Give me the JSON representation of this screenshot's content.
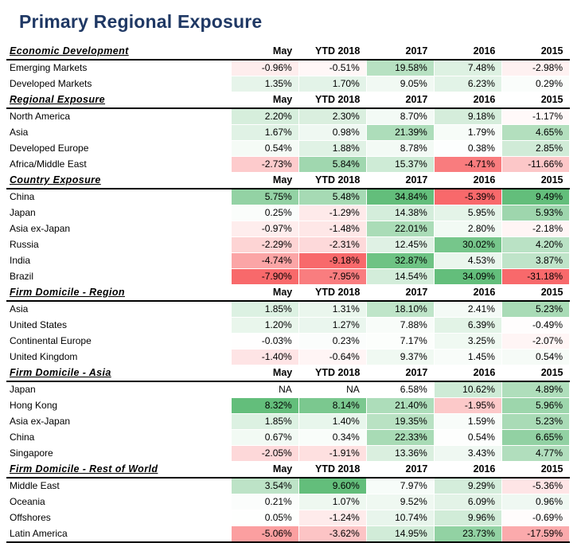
{
  "title": "Primary Regional Exposure",
  "chart_data": {
    "type": "table",
    "subtype": "heatmap",
    "columns": [
      "May",
      "YTD 2018",
      "2017",
      "2016",
      "2015"
    ],
    "heatmap_colors": {
      "negative": "#F8696B",
      "neutral": "#FFFFFF",
      "positive": "#63BE7B"
    },
    "color_scale": "per-column, white at zero (or column min if all positive), green at column max, red at column min",
    "sections": [
      {
        "name": "Economic Development",
        "rows": [
          {
            "label": "Emerging Markets",
            "values": [
              "-0.96%",
              "-0.51%",
              "19.58%",
              "7.48%",
              "-2.98%"
            ]
          },
          {
            "label": "Developed Markets",
            "values": [
              "1.35%",
              "1.70%",
              "9.05%",
              "6.23%",
              "0.29%"
            ]
          }
        ]
      },
      {
        "name": "Regional Exposure",
        "rows": [
          {
            "label": "North America",
            "values": [
              "2.20%",
              "2.30%",
              "8.70%",
              "9.18%",
              "-1.17%"
            ]
          },
          {
            "label": "Asia",
            "values": [
              "1.67%",
              "0.98%",
              "21.39%",
              "1.79%",
              "4.65%"
            ]
          },
          {
            "label": "Developed Europe",
            "values": [
              "0.54%",
              "1.88%",
              "8.78%",
              "0.38%",
              "2.85%"
            ]
          },
          {
            "label": "Africa/Middle East",
            "values": [
              "-2.73%",
              "5.84%",
              "15.37%",
              "-4.71%",
              "-11.66%"
            ]
          }
        ]
      },
      {
        "name": "Country Exposure",
        "rows": [
          {
            "label": "China",
            "values": [
              "5.75%",
              "5.48%",
              "34.84%",
              "-5.39%",
              "9.49%"
            ]
          },
          {
            "label": "Japan",
            "values": [
              "0.25%",
              "-1.29%",
              "14.38%",
              "5.95%",
              "5.93%"
            ]
          },
          {
            "label": "Asia ex-Japan",
            "values": [
              "-0.97%",
              "-1.48%",
              "22.01%",
              "2.80%",
              "-2.18%"
            ]
          },
          {
            "label": "Russia",
            "values": [
              "-2.29%",
              "-2.31%",
              "12.45%",
              "30.02%",
              "4.20%"
            ]
          },
          {
            "label": "India",
            "values": [
              "-4.74%",
              "-9.18%",
              "32.87%",
              "4.53%",
              "3.87%"
            ]
          },
          {
            "label": "Brazil",
            "values": [
              "-7.90%",
              "-7.95%",
              "14.54%",
              "34.09%",
              "-31.18%"
            ]
          }
        ]
      },
      {
        "name": "Firm Domicile - Region",
        "rows": [
          {
            "label": "Asia",
            "values": [
              "1.85%",
              "1.31%",
              "18.10%",
              "2.41%",
              "5.23%"
            ]
          },
          {
            "label": "United States",
            "values": [
              "1.20%",
              "1.27%",
              "7.88%",
              "6.39%",
              "-0.49%"
            ]
          },
          {
            "label": "Continental Europe",
            "values": [
              "-0.03%",
              "0.23%",
              "7.17%",
              "3.25%",
              "-2.07%"
            ]
          },
          {
            "label": "United Kingdom",
            "values": [
              "-1.40%",
              "-0.64%",
              "9.37%",
              "1.45%",
              "0.54%"
            ]
          }
        ]
      },
      {
        "name": "Firm Domicile - Asia",
        "rows": [
          {
            "label": "Japan",
            "values": [
              "NA",
              "NA",
              "6.58%",
              "10.62%",
              "4.89%"
            ]
          },
          {
            "label": "Hong Kong",
            "values": [
              "8.32%",
              "8.14%",
              "21.40%",
              "-1.95%",
              "5.96%"
            ]
          },
          {
            "label": "Asia ex-Japan",
            "values": [
              "1.85%",
              "1.40%",
              "19.35%",
              "1.59%",
              "5.23%"
            ]
          },
          {
            "label": "China",
            "values": [
              "0.67%",
              "0.34%",
              "22.33%",
              "0.54%",
              "6.65%"
            ]
          },
          {
            "label": "Singapore",
            "values": [
              "-2.05%",
              "-1.91%",
              "13.36%",
              "3.43%",
              "4.77%"
            ]
          }
        ]
      },
      {
        "name": "Firm Domicile - Rest of World",
        "rows": [
          {
            "label": "Middle East",
            "values": [
              "3.54%",
              "9.60%",
              "7.97%",
              "9.29%",
              "-5.36%"
            ]
          },
          {
            "label": "Oceania",
            "values": [
              "0.21%",
              "1.07%",
              "9.52%",
              "6.09%",
              "0.96%"
            ]
          },
          {
            "label": "Offshores",
            "values": [
              "0.05%",
              "-1.24%",
              "10.74%",
              "9.96%",
              "-0.69%"
            ]
          },
          {
            "label": "Latin America",
            "values": [
              "-5.06%",
              "-3.62%",
              "14.95%",
              "23.73%",
              "-17.59%"
            ]
          }
        ]
      }
    ]
  }
}
